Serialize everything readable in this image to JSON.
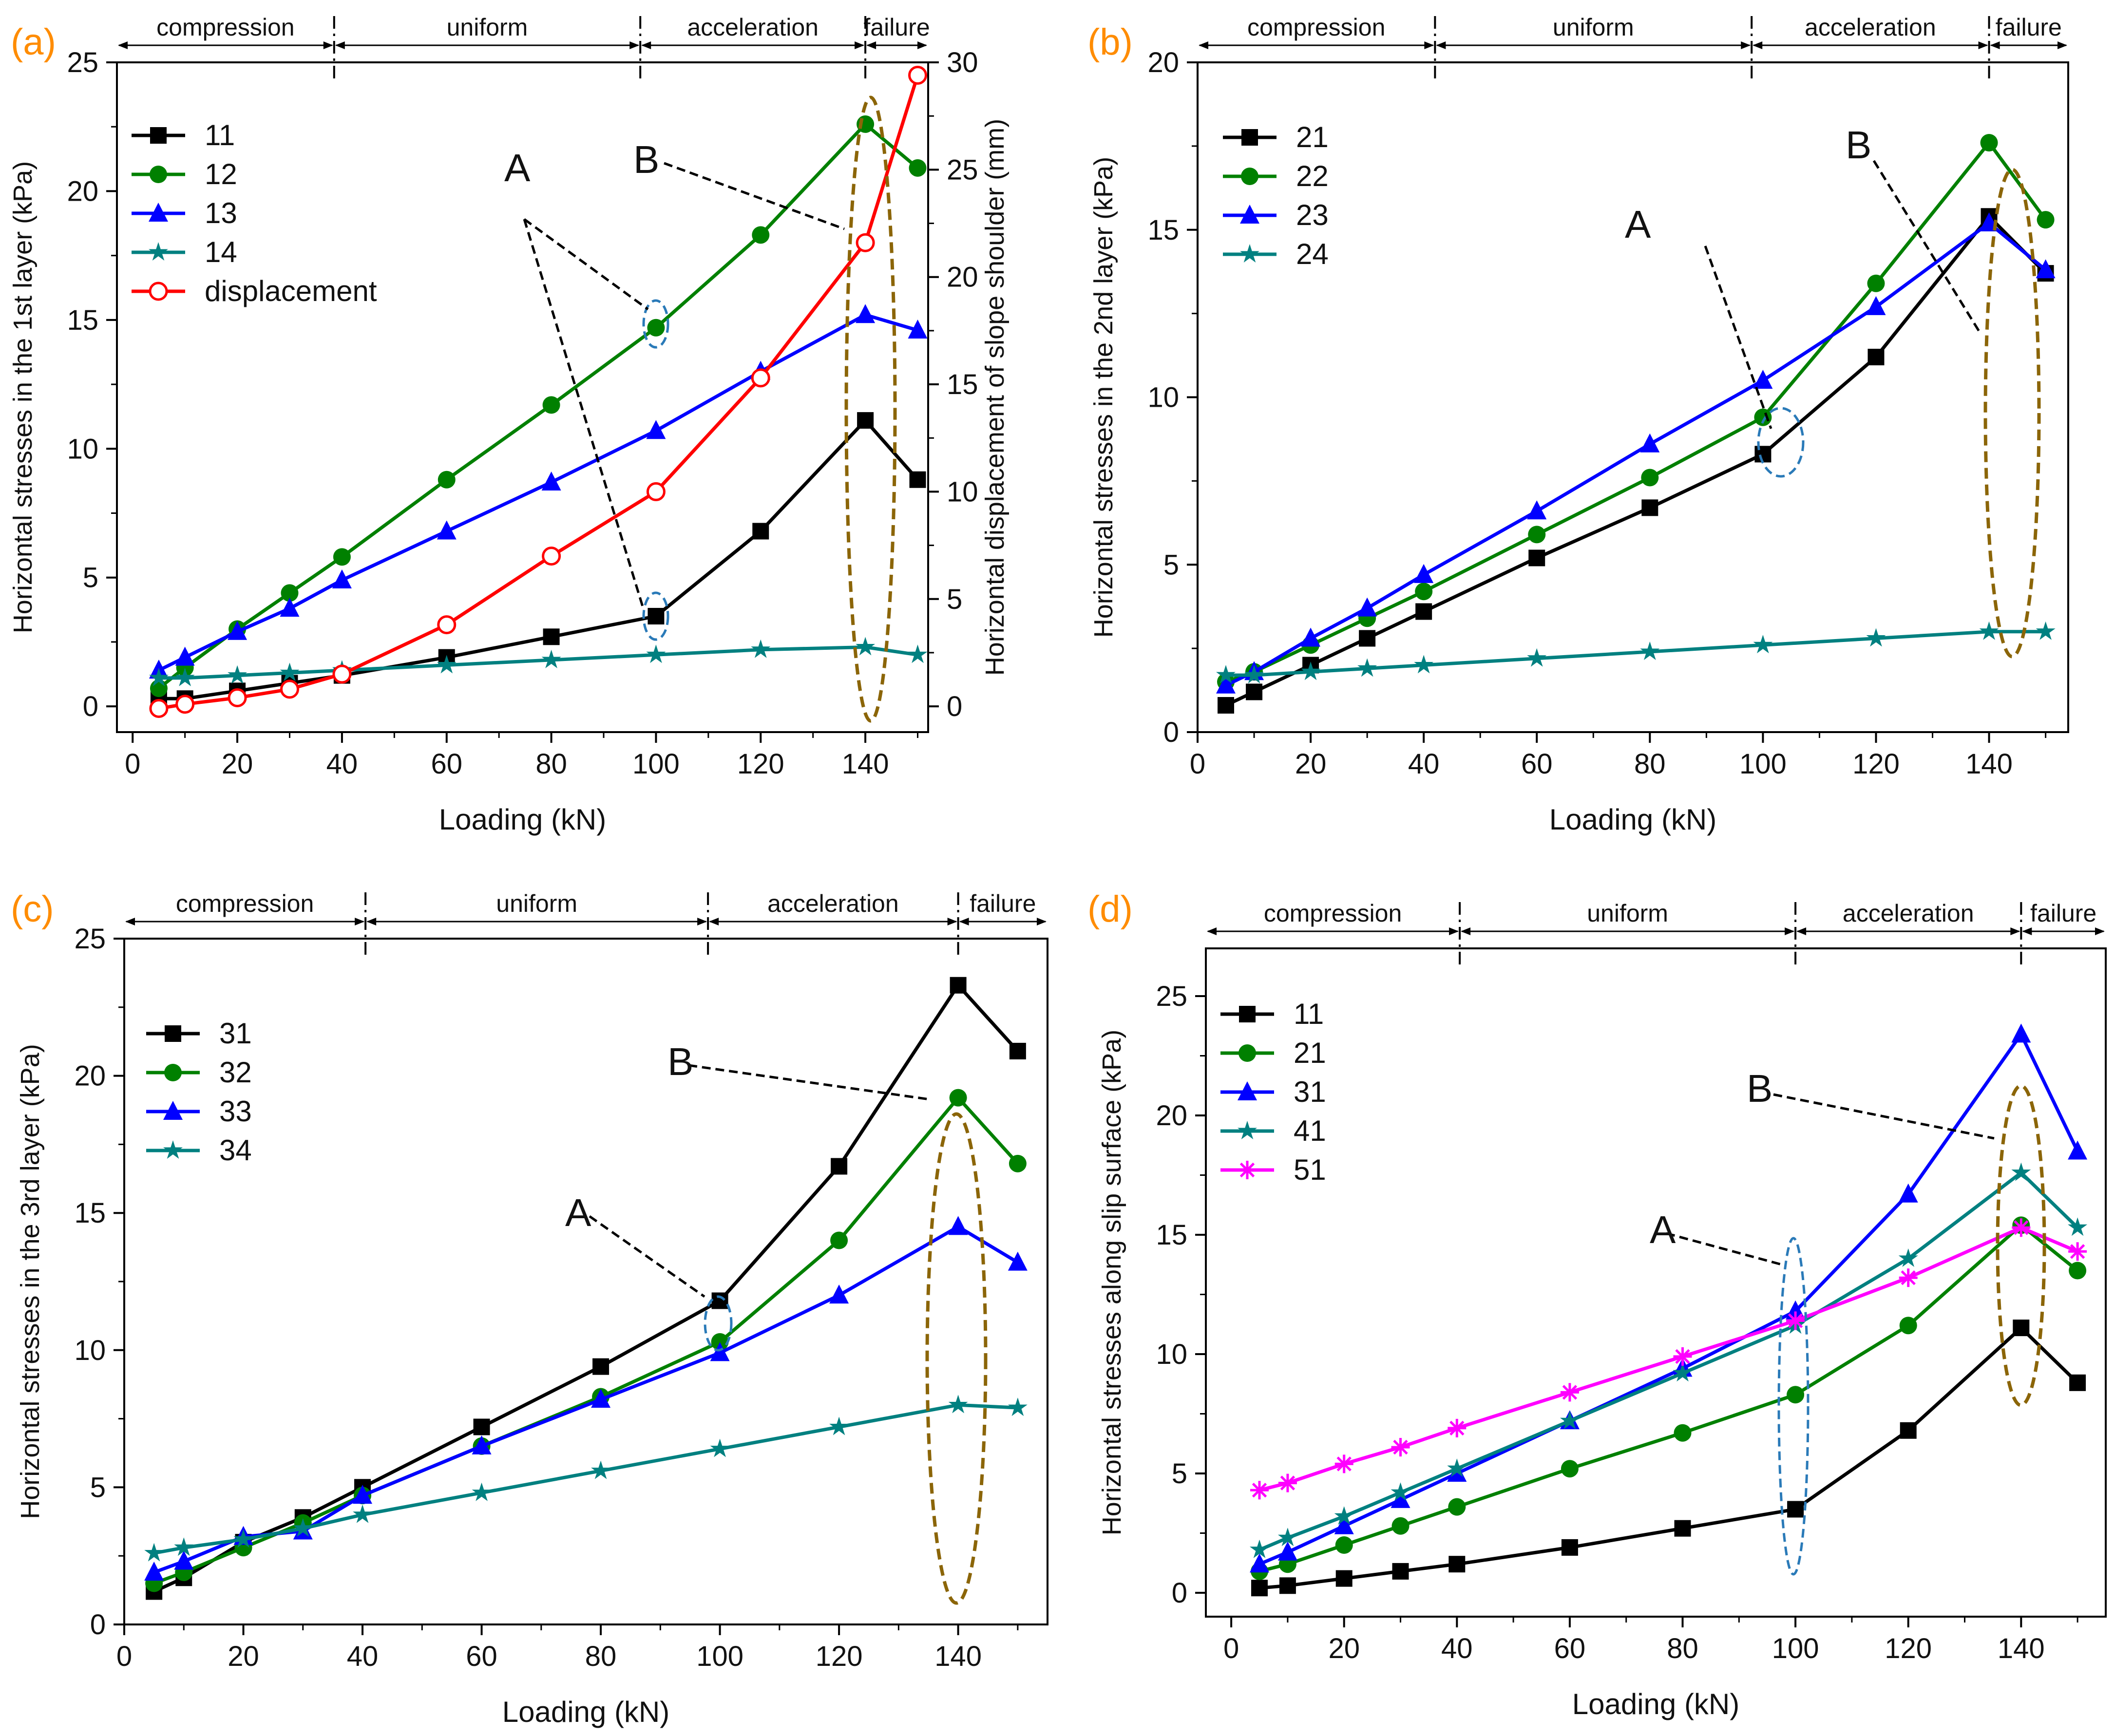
{
  "chart_data": [
    {
      "panel": "(a)",
      "type": "line",
      "xlabel": "Loading (kN)",
      "ylabel": "Horizontal stresses in the 1st layer (kPa)",
      "y2label": "Horizontal displacement of slope shoulder (mm)",
      "xlim": [
        -3,
        152
      ],
      "ylim": [
        -1,
        25
      ],
      "y2lim": [
        -1.2,
        30
      ],
      "xticks": [
        "0",
        "20",
        "40",
        "60",
        "80",
        "100",
        "120",
        "140"
      ],
      "yticks": [
        "0",
        "5",
        "10",
        "15",
        "20",
        "25"
      ],
      "y2ticks": [
        "0",
        "5",
        "10",
        "15",
        "20",
        "25",
        "30"
      ],
      "x": [
        5,
        10,
        20,
        30,
        40,
        60,
        80,
        100,
        120,
        140,
        150
      ],
      "series": [
        {
          "name": "11",
          "color": "#000000",
          "marker": "square",
          "values": [
            0.3,
            0.3,
            0.6,
            0.9,
            1.2,
            1.9,
            2.7,
            3.5,
            6.8,
            11.1,
            8.8
          ]
        },
        {
          "name": "12",
          "color": "#008000",
          "marker": "circle",
          "values": [
            0.7,
            1.5,
            3.0,
            4.4,
            5.8,
            8.8,
            11.7,
            14.7,
            18.3,
            22.6,
            20.9
          ]
        },
        {
          "name": "13",
          "color": "#0000ff",
          "marker": "triangle",
          "values": [
            1.4,
            1.9,
            2.9,
            3.8,
            4.9,
            6.8,
            8.7,
            10.7,
            13.0,
            15.2,
            14.6
          ]
        },
        {
          "name": "14",
          "color": "#008080",
          "marker": "star",
          "values": [
            1.1,
            1.1,
            1.2,
            1.3,
            1.4,
            1.6,
            1.8,
            2.0,
            2.2,
            2.3,
            2.0
          ]
        },
        {
          "name": "displacement",
          "color": "#ff0000",
          "marker": "open-circle",
          "axis": "y2",
          "values": [
            -0.1,
            0.1,
            0.4,
            0.8,
            1.5,
            3.8,
            7.0,
            10.0,
            15.3,
            21.6,
            29.4
          ]
        }
      ],
      "phases": [
        {
          "label": "compression",
          "start": -3,
          "end": 38.5
        },
        {
          "label": "uniform",
          "start": 38.5,
          "end": 97
        },
        {
          "label": "acceleration",
          "start": 97,
          "end": 140
        },
        {
          "label": "failure",
          "start": 140,
          "end": 152
        }
      ],
      "annotations": {
        "A": "A",
        "B": "B"
      }
    },
    {
      "panel": "(b)",
      "type": "line",
      "xlabel": "Loading (kN)",
      "ylabel": "Horizontal stresses in the 2nd layer (kPa)",
      "xlim": [
        0,
        154
      ],
      "ylim": [
        0,
        20
      ],
      "xticks": [
        "0",
        "20",
        "40",
        "60",
        "80",
        "100",
        "120",
        "140"
      ],
      "yticks": [
        "0",
        "5",
        "10",
        "15",
        "20"
      ],
      "x": [
        5,
        10,
        20,
        30,
        40,
        60,
        80,
        100,
        120,
        140,
        150
      ],
      "series": [
        {
          "name": "21",
          "color": "#000000",
          "marker": "square",
          "values": [
            0.8,
            1.2,
            2.0,
            2.8,
            3.6,
            5.2,
            6.7,
            8.3,
            11.2,
            15.4,
            13.7
          ]
        },
        {
          "name": "22",
          "color": "#008000",
          "marker": "circle",
          "values": [
            1.5,
            1.8,
            2.6,
            3.4,
            4.2,
            5.9,
            7.6,
            9.4,
            13.4,
            17.6,
            15.3
          ]
        },
        {
          "name": "23",
          "color": "#0000ff",
          "marker": "triangle",
          "values": [
            1.4,
            1.8,
            2.8,
            3.7,
            4.7,
            6.6,
            8.6,
            10.5,
            12.7,
            15.2,
            13.8
          ]
        },
        {
          "name": "24",
          "color": "#008080",
          "marker": "star",
          "values": [
            1.7,
            1.7,
            1.8,
            1.9,
            2.0,
            2.2,
            2.4,
            2.6,
            2.8,
            3.0,
            3.0
          ]
        }
      ],
      "phases": [
        {
          "label": "compression",
          "start": 0,
          "end": 42
        },
        {
          "label": "uniform",
          "start": 42,
          "end": 98
        },
        {
          "label": "acceleration",
          "start": 98,
          "end": 140
        },
        {
          "label": "failure",
          "start": 140,
          "end": 154
        }
      ],
      "annotations": {
        "A": "A",
        "B": "B"
      }
    },
    {
      "panel": "(c)",
      "type": "line",
      "xlabel": "Loading (kN)",
      "ylabel": "Horizontal stresses in the 3rd layer (kPa)",
      "xlim": [
        0,
        155
      ],
      "ylim": [
        0,
        25
      ],
      "xticks": [
        "0",
        "20",
        "40",
        "60",
        "80",
        "100",
        "120",
        "140"
      ],
      "yticks": [
        "0",
        "5",
        "10",
        "15",
        "20",
        "25"
      ],
      "x": [
        5,
        10,
        20,
        30,
        40,
        60,
        80,
        100,
        120,
        140,
        150
      ],
      "series": [
        {
          "name": "31",
          "color": "#000000",
          "marker": "square",
          "values": [
            1.2,
            1.7,
            3.0,
            3.9,
            5.0,
            7.2,
            9.4,
            11.8,
            16.7,
            23.3,
            20.9
          ]
        },
        {
          "name": "32",
          "color": "#008000",
          "marker": "circle",
          "values": [
            1.5,
            1.9,
            2.8,
            3.7,
            4.7,
            6.5,
            8.3,
            10.3,
            14.0,
            19.2,
            16.8
          ]
        },
        {
          "name": "33",
          "color": "#0000ff",
          "marker": "triangle",
          "values": [
            1.9,
            2.3,
            3.2,
            3.4,
            4.7,
            6.5,
            8.2,
            9.9,
            12.0,
            14.5,
            13.2
          ]
        },
        {
          "name": "34",
          "color": "#008080",
          "marker": "star",
          "values": [
            2.6,
            2.8,
            3.1,
            3.5,
            4.0,
            4.8,
            5.6,
            6.4,
            7.2,
            8.0,
            7.9
          ]
        }
      ],
      "phases": [
        {
          "label": "compression",
          "start": 0,
          "end": 40.5
        },
        {
          "label": "uniform",
          "start": 40.5,
          "end": 98
        },
        {
          "label": "acceleration",
          "start": 98,
          "end": 140
        },
        {
          "label": "failure",
          "start": 140,
          "end": 155
        }
      ],
      "annotations": {
        "A": "A",
        "B": "B"
      }
    },
    {
      "panel": "(d)",
      "type": "line",
      "xlabel": "Loading (kN)",
      "ylabel": "Horizontal stresses along slip surface (kPa)",
      "xlim": [
        -4.5,
        155
      ],
      "ylim": [
        -1,
        27
      ],
      "xticks": [
        "0",
        "20",
        "40",
        "60",
        "80",
        "100",
        "120",
        "140"
      ],
      "yticks": [
        "0",
        "5",
        "10",
        "15",
        "20",
        "25"
      ],
      "x": [
        5,
        10,
        20,
        30,
        40,
        60,
        80,
        100,
        120,
        140,
        150
      ],
      "series": [
        {
          "name": "11",
          "color": "#000000",
          "marker": "square",
          "values": [
            0.2,
            0.3,
            0.6,
            0.9,
            1.2,
            1.9,
            2.7,
            3.5,
            6.8,
            11.1,
            8.8
          ]
        },
        {
          "name": "21",
          "color": "#008000",
          "marker": "circle",
          "values": [
            0.9,
            1.2,
            2.0,
            2.8,
            3.6,
            5.2,
            6.7,
            8.3,
            11.2,
            15.4,
            13.5
          ]
        },
        {
          "name": "31",
          "color": "#0000ff",
          "marker": "triangle",
          "values": [
            1.2,
            1.7,
            2.8,
            3.9,
            5.0,
            7.2,
            9.4,
            11.8,
            16.7,
            23.4,
            18.5
          ]
        },
        {
          "name": "41",
          "color": "#008080",
          "marker": "star",
          "values": [
            1.8,
            2.3,
            3.2,
            4.2,
            5.2,
            7.2,
            9.2,
            11.2,
            14.0,
            17.6,
            15.3
          ]
        },
        {
          "name": "51",
          "color": "#ff00ff",
          "marker": "asterisk",
          "values": [
            4.3,
            4.6,
            5.4,
            6.1,
            6.9,
            8.4,
            9.9,
            11.4,
            13.2,
            15.3,
            14.3
          ]
        }
      ],
      "phases": [
        {
          "label": "compression",
          "start": -4.5,
          "end": 40.5
        },
        {
          "label": "uniform",
          "start": 40.5,
          "end": 100
        },
        {
          "label": "acceleration",
          "start": 100,
          "end": 140
        },
        {
          "label": "failure",
          "start": 140,
          "end": 155
        }
      ],
      "annotations": {
        "A": "A",
        "B": "B"
      }
    }
  ]
}
